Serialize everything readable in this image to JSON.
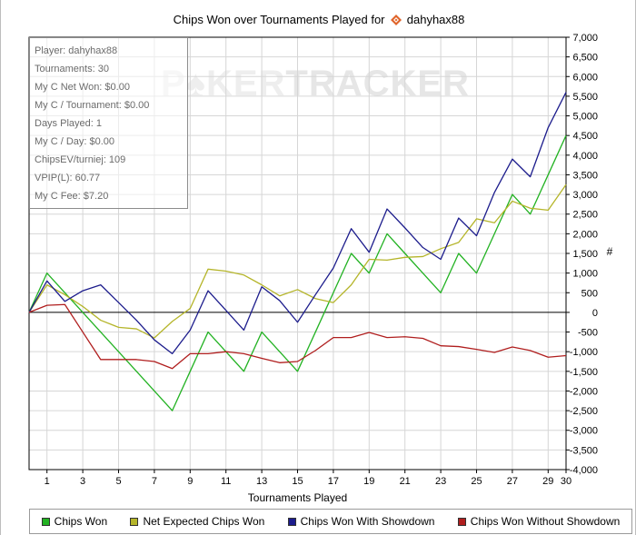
{
  "title_prefix": "Chips Won over Tournaments Played for",
  "player_name": "dahyhax88",
  "watermark": {
    "part1": "P",
    "part2": "KER",
    "part3": "TRACKER"
  },
  "stats": [
    "Player: dahyhax88",
    "Tournaments: 30",
    "My C Net Won: $0.00",
    "My C / Tournament: $0.00",
    "Days Played: 1",
    "My C / Day: $0.00",
    "ChipsEV/turniej: 109",
    "VPIP(L): 60.77",
    "My C Fee: $7.20"
  ],
  "colors": {
    "chips_won": "#22b222",
    "net_expected": "#b5b52a",
    "showdown": "#1c1c8c",
    "without_showdown": "#b01e1e",
    "grid": "#d6d6d6"
  },
  "chart_data": {
    "type": "line",
    "xlabel": "Tournaments Played",
    "ylabel": "#",
    "xlim": [
      0,
      30
    ],
    "ylim": [
      -4000,
      7000
    ],
    "x_ticks": [
      1,
      3,
      5,
      7,
      9,
      11,
      13,
      15,
      17,
      19,
      21,
      23,
      25,
      27,
      29,
      30
    ],
    "y_ticks": [
      -4000,
      -3500,
      -3000,
      -2500,
      -2000,
      -1500,
      -1000,
      -500,
      0,
      500,
      1000,
      1500,
      2000,
      2500,
      3000,
      3500,
      4000,
      4500,
      5000,
      5500,
      6000,
      6500,
      7000
    ],
    "y_tick_labels": [
      "-4,000",
      "-3,500",
      "-3,000",
      "-2,500",
      "-2,000",
      "-1,500",
      "-1,000",
      "-500",
      "0",
      "500",
      "1,000",
      "1,500",
      "2,000",
      "2,500",
      "3,000",
      "3,500",
      "4,000",
      "4,500",
      "5,000",
      "5,500",
      "6,000",
      "6,500",
      "7,000"
    ],
    "grid": true,
    "legend_position": "bottom",
    "x": [
      0,
      1,
      2,
      3,
      4,
      5,
      6,
      7,
      8,
      9,
      10,
      11,
      12,
      13,
      14,
      15,
      16,
      17,
      18,
      19,
      20,
      21,
      22,
      23,
      24,
      25,
      26,
      27,
      28,
      29,
      30
    ],
    "series": [
      {
        "name": "Chips Won",
        "color_key": "chips_won",
        "values": [
          0,
          1000,
          500,
          0,
          -500,
          -1000,
          -1500,
          -2000,
          -2500,
          -1500,
          -500,
          -1000,
          -1500,
          -500,
          -1000,
          -1500,
          -500,
          500,
          1500,
          1000,
          2000,
          1500,
          1000,
          500,
          1500,
          1000,
          2000,
          3000,
          2500,
          3500,
          4500
        ]
      },
      {
        "name": "Net Expected Chips Won",
        "color_key": "net_expected",
        "values": [
          0,
          700,
          450,
          150,
          -200,
          -380,
          -420,
          -650,
          -230,
          100,
          1100,
          1050,
          950,
          700,
          420,
          580,
          350,
          250,
          700,
          1350,
          1330,
          1400,
          1420,
          1620,
          1780,
          2380,
          2280,
          2830,
          2650,
          2600,
          3250
        ]
      },
      {
        "name": "Chips Won With Showdown",
        "color_key": "showdown",
        "values": [
          0,
          800,
          280,
          550,
          700,
          250,
          -200,
          -700,
          -1050,
          -450,
          550,
          50,
          -450,
          650,
          300,
          -250,
          450,
          1130,
          2130,
          1530,
          2630,
          2150,
          1650,
          1350,
          2400,
          1950,
          3050,
          3900,
          3450,
          4700,
          5600
        ]
      },
      {
        "name": "Chips Won Without Showdown",
        "color_key": "without_showdown",
        "values": [
          0,
          180,
          200,
          -500,
          -1200,
          -1200,
          -1200,
          -1250,
          -1430,
          -1050,
          -1050,
          -1000,
          -1050,
          -1170,
          -1280,
          -1250,
          -970,
          -640,
          -640,
          -510,
          -640,
          -620,
          -660,
          -850,
          -870,
          -940,
          -1020,
          -880,
          -970,
          -1140,
          -1100
        ]
      }
    ]
  }
}
